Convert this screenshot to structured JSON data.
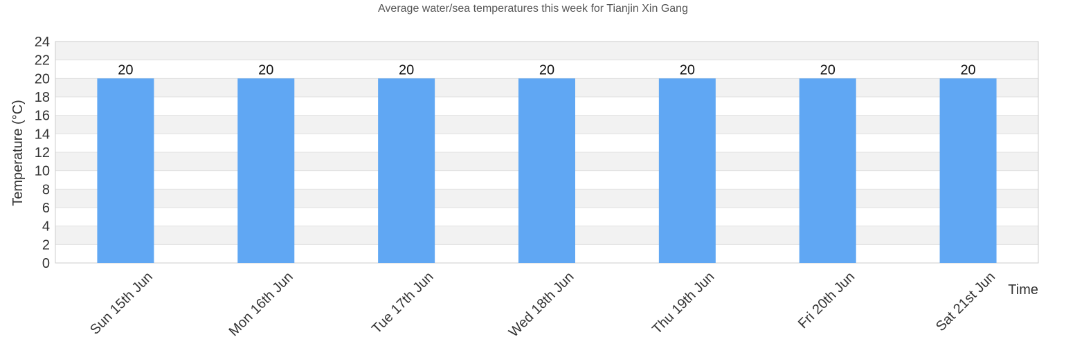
{
  "chart_data": {
    "type": "bar",
    "title": "Average water/sea temperatures this week for Tianjin Xin Gang",
    "xlabel": "Time",
    "ylabel": "Temperature (°C)",
    "categories": [
      "Sun 15th Jun",
      "Mon 16th Jun",
      "Tue 17th Jun",
      "Wed 18th Jun",
      "Thu 19th Jun",
      "Fri 20th Jun",
      "Sat 21st Jun"
    ],
    "series": [
      {
        "values": [
          20,
          20,
          20,
          20,
          20,
          20,
          20
        ]
      }
    ],
    "ylim": [
      0,
      24
    ],
    "yticks": [
      0,
      2,
      4,
      6,
      8,
      10,
      12,
      14,
      16,
      18,
      20,
      22,
      24
    ],
    "data_labels": true,
    "grid": true,
    "legend": "none",
    "colors": {
      "bar": "#60a7f3",
      "band": "#f2f2f2",
      "grid": "#e0e0e0",
      "axis": "#cccccc"
    }
  }
}
